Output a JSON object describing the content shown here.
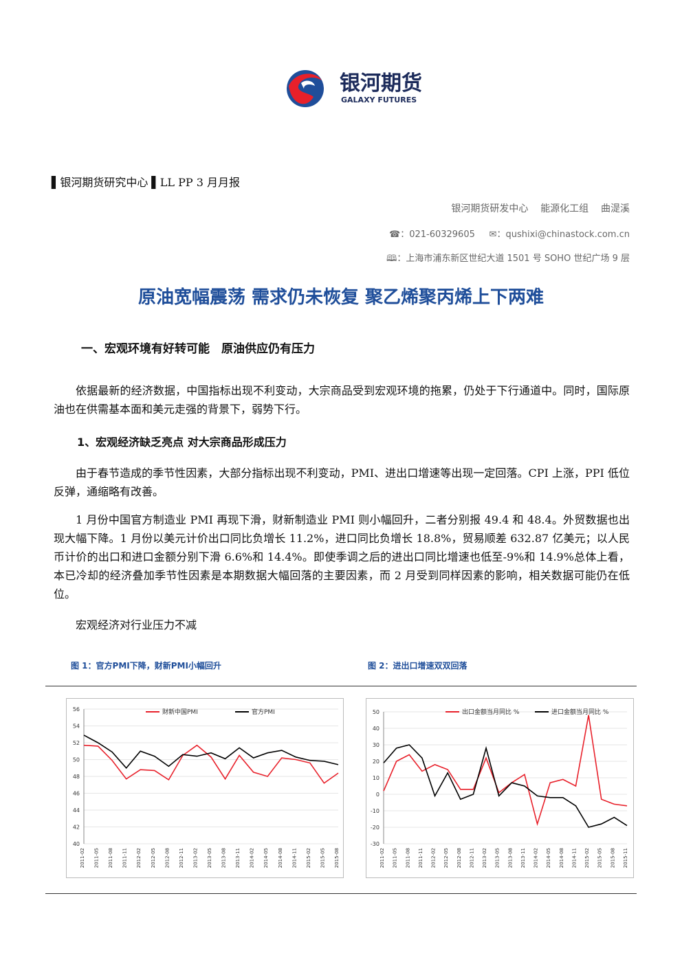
{
  "header": {
    "logo_cn": "银河期货",
    "logo_en": "GALAXY FUTURES",
    "breadcrumb": [
      "银河期货研究中心",
      "LL PP 3 月月报"
    ],
    "author": [
      "银河期货研发中心",
      "能源化工组",
      "曲湜溪"
    ],
    "phone": "：021-60329605",
    "email": "：qushixi@chinastock.com.cn",
    "address": "：上海市浦东新区世纪大道 1501 号 SOHO 世纪广场 9 层"
  },
  "title": "原油宽幅震荡 需求仍未恢复 聚乙烯聚丙烯上下两难",
  "section_heading": "一、宏观环境有好转可能　原油供应仍有压力",
  "paragraphs": [
    "依据最新的经济数据，中国指标出现不利变动，大宗商品受到宏观环境的拖累，仍处于下行通道中。同时，国际原油也在供需基本面和美元走强的背景下，弱势下行。"
  ],
  "subsection_heading": "1、宏观经济缺乏亮点  对大宗商品形成压力",
  "subsection_paragraphs": [
    "由于春节造成的季节性因素，大部分指标出现不利变动，PMI、进出口增速等出现一定回落。CPI 上涨，PPI 低位反弹，通缩略有改善。",
    "1 月份中国官方制造业 PMI 再现下滑，财新制造业 PMI 则小幅回升，二者分别报 49.4 和 48.4。外贸数据也出现大幅下降。1 月份以美元计价出口同比负增长 11.2%，进口同比负增长 18.8%，贸易顺差 632.87 亿美元；以人民币计价的出口和进口金额分别下滑 6.6%和 14.4%。即使季调之后的进出口同比增速也低至-9%和 14.9%总体上看，本已冷却的经济叠加季节性因素是本期数据大幅回落的主要因素，而 2 月受到同样因素的影响，相关数据可能仍在低位。",
    "宏观经济对行业压力不减"
  ],
  "figures": [
    {
      "caption": "图 1：官方PMI下降，财新PMI小幅回升",
      "chart_data": {
        "type": "line",
        "categories": [
          "2011-02",
          "2011-05",
          "2011-08",
          "2011-11",
          "2012-02",
          "2012-05",
          "2012-08",
          "2012-11",
          "2013-02",
          "2013-05",
          "2013-08",
          "2013-11",
          "2014-02",
          "2014-05",
          "2014-08",
          "2014-11",
          "2015-02",
          "2015-05",
          "2015-08"
        ],
        "series": [
          {
            "name": "财新中国PMI",
            "color": "#e8202a",
            "values": [
              51.7,
              51.6,
              49.9,
              47.7,
              48.8,
              48.7,
              47.6,
              50.5,
              51.7,
              50.3,
              47.7,
              50.5,
              48.5,
              48.0,
              50.2,
              50.0,
              49.6,
              47.2,
              48.4
            ]
          },
          {
            "name": "官方PMI",
            "color": "#000000",
            "values": [
              52.9,
              52.0,
              50.9,
              49.0,
              51.0,
              50.4,
              49.2,
              50.6,
              50.4,
              50.8,
              50.1,
              51.4,
              50.2,
              50.8,
              51.1,
              50.3,
              49.9,
              49.8,
              49.4
            ]
          }
        ],
        "ylim": [
          40,
          56
        ],
        "yticks": [
          40,
          42,
          44,
          46,
          48,
          50,
          52,
          54,
          56
        ],
        "grid": true
      }
    },
    {
      "caption": "图 2：进出口增速双双回落",
      "chart_data": {
        "type": "line",
        "categories": [
          "2011-02",
          "2011-05",
          "2011-08",
          "2011-11",
          "2012-02",
          "2012-05",
          "2012-08",
          "2012-11",
          "2013-02",
          "2013-05",
          "2013-08",
          "2013-11",
          "2014-02",
          "2014-05",
          "2014-08",
          "2014-11",
          "2015-02",
          "2015-05",
          "2015-08",
          "2015-11"
        ],
        "series": [
          {
            "name": "出口金额当月同比 %",
            "color": "#e8202a",
            "values": [
              2,
              20,
              24,
              14,
              18,
              15,
              3,
              3,
              22,
              1,
              7,
              12,
              -18,
              7,
              9,
              5,
              48,
              -3,
              -6,
              -7
            ]
          },
          {
            "name": "进口金额当月同比 %",
            "color": "#000000",
            "values": [
              19,
              28,
              30,
              22,
              -1,
              13,
              -3,
              0,
              28,
              -1,
              7,
              5,
              -1,
              -2,
              -2,
              -7,
              -20,
              -18,
              -14,
              -19
            ]
          }
        ],
        "ylim": [
          -30,
          50
        ],
        "yticks": [
          -30,
          -20,
          -10,
          0,
          10,
          20,
          30,
          40,
          50
        ],
        "grid": true
      }
    }
  ]
}
